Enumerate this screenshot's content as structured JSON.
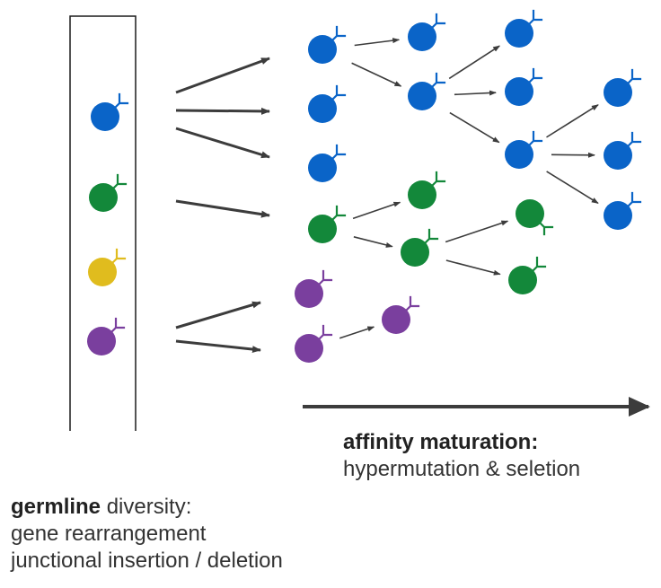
{
  "colors": {
    "blue": "#0a64c8",
    "green": "#13883a",
    "yellow": "#e0bc1e",
    "purple": "#7a3f9e",
    "arrow": "#3c3c3c",
    "box_border": "#1a1a1a"
  },
  "germline_box": {
    "cells": [
      "blue",
      "green",
      "yellow",
      "purple"
    ]
  },
  "cells": [
    {
      "id": "b1",
      "color": "blue"
    },
    {
      "id": "b2",
      "color": "blue"
    },
    {
      "id": "b3",
      "color": "blue"
    },
    {
      "id": "b4",
      "color": "blue"
    },
    {
      "id": "b5",
      "color": "blue"
    },
    {
      "id": "b6",
      "color": "blue"
    },
    {
      "id": "b7",
      "color": "blue"
    },
    {
      "id": "b8",
      "color": "blue"
    },
    {
      "id": "b9",
      "color": "blue"
    },
    {
      "id": "b10",
      "color": "blue"
    },
    {
      "id": "b11",
      "color": "blue"
    },
    {
      "id": "g1",
      "color": "green"
    },
    {
      "id": "g2",
      "color": "green"
    },
    {
      "id": "g3",
      "color": "green"
    },
    {
      "id": "g4",
      "color": "green"
    },
    {
      "id": "g5",
      "color": "green"
    },
    {
      "id": "p1",
      "color": "purple"
    },
    {
      "id": "p2",
      "color": "purple"
    },
    {
      "id": "p3",
      "color": "purple"
    }
  ],
  "lineage_edges": [
    [
      "b1",
      "b4"
    ],
    [
      "b1",
      "b5"
    ],
    [
      "b5",
      "b6"
    ],
    [
      "b5",
      "b7"
    ],
    [
      "b5",
      "b8"
    ],
    [
      "b8",
      "b9"
    ],
    [
      "b8",
      "b10"
    ],
    [
      "b8",
      "b11"
    ],
    [
      "g1",
      "g2"
    ],
    [
      "g1",
      "g3"
    ],
    [
      "g3",
      "g4"
    ],
    [
      "g3",
      "g5"
    ],
    [
      "p2",
      "p3"
    ]
  ],
  "affinity_caption": {
    "bold": "affinity maturation:",
    "line2": "hypermutation & seletion"
  },
  "germline_caption": {
    "bold": "germline",
    "rest": " diversity:",
    "line2": "gene rearrangement",
    "line3": "junctional insertion / deletion"
  }
}
